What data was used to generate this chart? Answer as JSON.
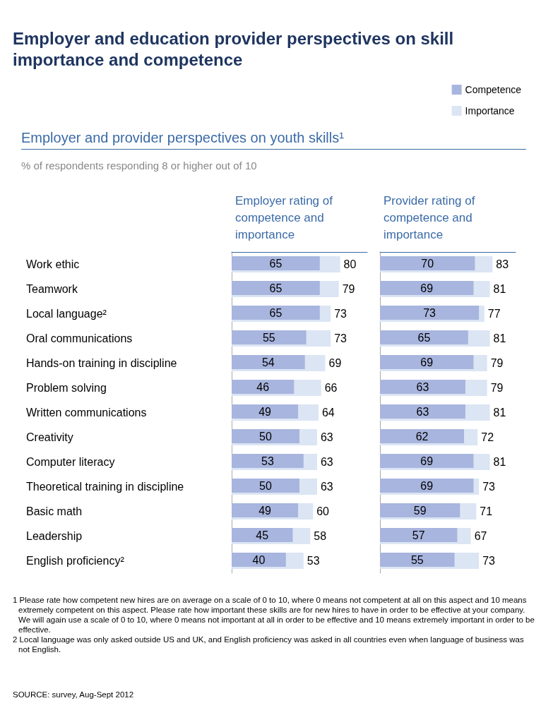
{
  "chart_data": [
    {
      "type": "other",
      "title": "Employer and education provider perspectives on skill importance and competence",
      "subtitle": "Employer and provider perspectives on youth skills¹",
      "annotations": [
        "% of respondents responding 8 or higher out of 10",
        "1 Please rate how competent new hires are on average on a scale of 0 to 10, where 0 means not competent at all on this aspect and 10 means extremely competent on this aspect. Please rate how important these skills are for new hires to have in order to be effective at your company. We will again use a scale of 0 to 10, where 0 means not important at all in order to be effective and 10 means extremely important in order to be effective.",
        "2 Local language was only asked outside US and UK, and English proficiency was asked in all countries even when language of business was not English.",
        "SOURCE: survey, Aug-Sept 2012"
      ]
    },
    {
      "type": "bar",
      "orientation": "horizontal",
      "title": "Employer rating of competence and importance",
      "categories": [
        "Work ethic",
        "Teamwork",
        "Local language²",
        "Oral communications",
        "Hands-on training in discipline",
        "Problem solving",
        "Written communications",
        "Creativity",
        "Computer literacy",
        "Theoretical training in discipline",
        "Basic math",
        "Leadership",
        "English proficiency²"
      ],
      "xlim": [
        0,
        100
      ],
      "tick_labels": "y",
      "data_labels": true,
      "legend": false,
      "series": [
        {
          "color": "#a8b5de",
          "values": [
            65,
            65,
            65,
            55,
            54,
            46,
            49,
            50,
            53,
            50,
            49,
            45,
            40
          ]
        },
        {
          "color": "#dbe5f4",
          "values": [
            80,
            79,
            73,
            73,
            69,
            66,
            64,
            63,
            63,
            63,
            60,
            58,
            53
          ]
        }
      ]
    },
    {
      "type": "bar",
      "orientation": "horizontal",
      "title": "Provider rating of competence and importance",
      "categories": [
        null,
        null,
        null,
        null,
        null,
        null,
        null,
        null,
        null,
        null,
        null,
        null,
        null
      ],
      "xlim": [
        0,
        100
      ],
      "tick_labels": false,
      "data_labels": true,
      "legend": "top right",
      "series": [
        {
          "name": "Competence",
          "color": "#a8b5de",
          "values": [
            70,
            69,
            73,
            65,
            69,
            63,
            63,
            62,
            69,
            69,
            59,
            57,
            55
          ]
        },
        {
          "name": "Importance",
          "color": "#dbe5f4",
          "values": [
            83,
            81,
            77,
            81,
            79,
            79,
            81,
            72,
            81,
            73,
            71,
            67,
            73
          ]
        }
      ]
    }
  ]
}
